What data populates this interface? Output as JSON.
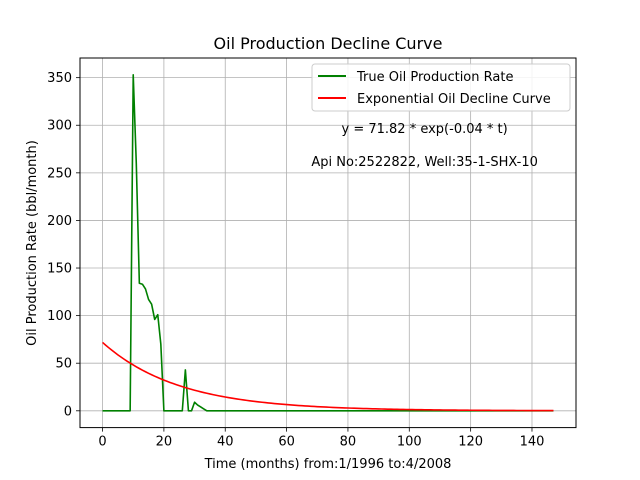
{
  "chart_data": {
    "type": "line",
    "title": "Oil Production Decline Curve",
    "xlabel": "Time (months) from:1/1996 to:4/2008",
    "ylabel": "Oil Production Rate (bbl/month)",
    "xlim": [
      -7.35,
      154.35
    ],
    "ylim": [
      -17.65,
      370.65
    ],
    "x_ticks": [
      0,
      20,
      40,
      60,
      80,
      100,
      120,
      140
    ],
    "y_ticks": [
      0,
      50,
      100,
      150,
      200,
      250,
      300,
      350
    ],
    "grid": true,
    "legend_position": "top-right",
    "series": [
      {
        "name": "True Oil Production Rate",
        "color": "#008000",
        "points": [
          [
            0,
            0
          ],
          [
            1,
            0
          ],
          [
            2,
            0
          ],
          [
            3,
            0
          ],
          [
            4,
            0
          ],
          [
            5,
            0
          ],
          [
            6,
            0
          ],
          [
            7,
            0
          ],
          [
            8,
            0
          ],
          [
            9,
            0
          ],
          [
            10,
            353
          ],
          [
            11,
            260
          ],
          [
            12,
            134
          ],
          [
            13,
            133
          ],
          [
            14,
            128
          ],
          [
            15,
            117
          ],
          [
            16,
            112
          ],
          [
            17,
            96
          ],
          [
            18,
            101
          ],
          [
            19,
            70
          ],
          [
            20,
            0
          ],
          [
            21,
            0
          ],
          [
            22,
            0
          ],
          [
            23,
            0
          ],
          [
            24,
            0
          ],
          [
            25,
            0
          ],
          [
            26,
            0
          ],
          [
            27,
            43
          ],
          [
            28,
            0
          ],
          [
            29,
            0
          ],
          [
            30,
            9
          ],
          [
            31,
            6
          ],
          [
            32,
            4
          ],
          [
            33,
            2
          ],
          [
            34,
            0
          ],
          [
            35,
            0
          ],
          [
            36,
            0
          ],
          [
            40,
            0
          ],
          [
            50,
            0
          ],
          [
            60,
            0
          ],
          [
            70,
            0
          ],
          [
            80,
            0
          ],
          [
            90,
            0
          ],
          [
            100,
            0
          ],
          [
            110,
            0
          ],
          [
            120,
            0
          ],
          [
            130,
            0
          ],
          [
            140,
            0
          ],
          [
            147,
            0
          ]
        ]
      },
      {
        "name": "Exponential Oil Decline Curve",
        "color": "#ff0000",
        "model": {
          "a": 71.82,
          "b": 0.04,
          "x_start": 0,
          "x_end": 147
        }
      }
    ],
    "annotations": [
      {
        "text": "y = 71.82 * exp(-0.04 * t)",
        "x": 105,
        "y": 292
      },
      {
        "text": "Api No:2522822, Well:35-1-SHX-10",
        "x": 105,
        "y": 257
      }
    ]
  }
}
